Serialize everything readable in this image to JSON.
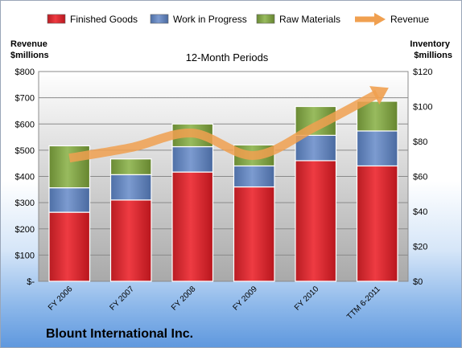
{
  "company": "Blount International Inc.",
  "chart_data": {
    "type": "bar",
    "stacked": true,
    "title": "12-Month Periods",
    "categories": [
      "FY 2006",
      "FY 2007",
      "FY 2008",
      "FY 2009",
      "FY 2010",
      "TTM 6-2011"
    ],
    "ylabel_left": [
      "Revenue",
      "$millions"
    ],
    "ylabel_right": [
      "Inventory",
      "$millions"
    ],
    "left_axis": {
      "min": 0,
      "max": 800,
      "step": 100,
      "tick_labels": [
        "$-",
        "$100",
        "$200",
        "$300",
        "$400",
        "$500",
        "$600",
        "$700",
        "$800"
      ]
    },
    "right_axis": {
      "min": 0,
      "max": 120,
      "step": 20,
      "tick_labels": [
        "$0",
        "$20",
        "$40",
        "$60",
        "$80",
        "$100",
        "$120"
      ]
    },
    "series": [
      {
        "name": "Finished Goods",
        "axis": "right",
        "type": "bar",
        "color": "#e8343c",
        "values": [
          39.5,
          46.5,
          62.5,
          54,
          69,
          66
        ]
      },
      {
        "name": "Work in Progress",
        "axis": "right",
        "type": "bar",
        "color": "#6f8fc6",
        "values": [
          14,
          14.5,
          14.5,
          12,
          14.5,
          20
        ]
      },
      {
        "name": "Raw Materials",
        "axis": "right",
        "type": "bar",
        "color": "#8db152",
        "values": [
          24,
          9,
          13,
          12,
          16.5,
          17
        ]
      },
      {
        "name": "Revenue",
        "axis": "left",
        "type": "line",
        "color": "#f0a050",
        "values": [
          470,
          510,
          565,
          480,
          590,
          715
        ]
      }
    ],
    "legend": "top",
    "grid": true
  }
}
